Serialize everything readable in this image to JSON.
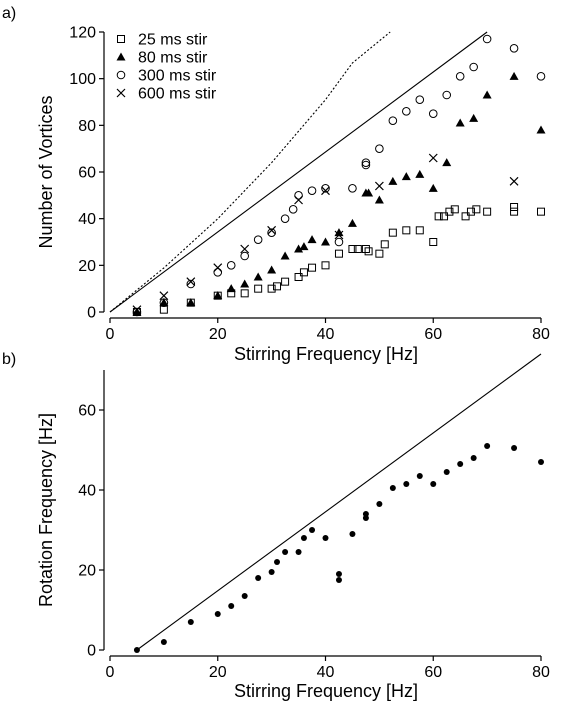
{
  "chart_data": [
    {
      "panel_label": "a)",
      "type": "scatter",
      "xlabel": "Stirring Frequency [Hz]",
      "ylabel": "Number of Vortices",
      "xlim": [
        0,
        80
      ],
      "ylim": [
        0,
        120
      ],
      "xticks": [
        0,
        20,
        40,
        60,
        80
      ],
      "yticks": [
        0,
        20,
        40,
        60,
        80,
        100,
        120
      ],
      "legend_position": "top-left",
      "series": [
        {
          "name": "25 ms stir",
          "marker": "open-square",
          "points": [
            [
              5,
              0
            ],
            [
              10,
              1
            ],
            [
              15,
              4
            ],
            [
              20,
              7
            ],
            [
              22.5,
              8
            ],
            [
              25,
              8
            ],
            [
              27.5,
              10
            ],
            [
              30,
              10
            ],
            [
              31,
              11
            ],
            [
              32.5,
              13
            ],
            [
              35,
              15
            ],
            [
              36,
              17
            ],
            [
              37.5,
              19
            ],
            [
              40,
              20
            ],
            [
              42.5,
              25
            ],
            [
              45,
              27
            ],
            [
              46,
              27
            ],
            [
              47.5,
              27
            ],
            [
              48,
              26
            ],
            [
              50,
              25
            ],
            [
              51,
              29
            ],
            [
              52.5,
              34
            ],
            [
              55,
              35
            ],
            [
              57.5,
              35
            ],
            [
              60,
              30
            ],
            [
              61,
              41
            ],
            [
              62,
              41
            ],
            [
              63,
              43
            ],
            [
              64,
              44
            ],
            [
              66,
              41
            ],
            [
              67,
              43
            ],
            [
              68,
              44
            ],
            [
              70,
              43
            ],
            [
              75,
              43
            ],
            [
              75,
              45
            ],
            [
              80,
              43
            ]
          ]
        },
        {
          "name": "80 ms stir",
          "marker": "filled-triangle",
          "points": [
            [
              5,
              0
            ],
            [
              10,
              4
            ],
            [
              15,
              4
            ],
            [
              20,
              7
            ],
            [
              22.5,
              10
            ],
            [
              25,
              12
            ],
            [
              27.5,
              15
            ],
            [
              30,
              18
            ],
            [
              32.5,
              24
            ],
            [
              35,
              27
            ],
            [
              36,
              28
            ],
            [
              37.5,
              31
            ],
            [
              40,
              30
            ],
            [
              42.5,
              34
            ],
            [
              45,
              38
            ],
            [
              47.5,
              51
            ],
            [
              48,
              51
            ],
            [
              50,
              48
            ],
            [
              52.5,
              56
            ],
            [
              55,
              58
            ],
            [
              57.5,
              59
            ],
            [
              60,
              53
            ],
            [
              62.5,
              64
            ],
            [
              65,
              81
            ],
            [
              67.5,
              83
            ],
            [
              70,
              93
            ],
            [
              75,
              101
            ],
            [
              80,
              78
            ]
          ]
        },
        {
          "name": "300 ms stir",
          "marker": "open-circle",
          "points": [
            [
              5,
              0
            ],
            [
              10,
              4
            ],
            [
              15,
              12
            ],
            [
              20,
              17
            ],
            [
              22.5,
              20
            ],
            [
              25,
              24
            ],
            [
              27.5,
              31
            ],
            [
              30,
              34
            ],
            [
              32.5,
              40
            ],
            [
              34,
              44
            ],
            [
              35,
              50
            ],
            [
              37.5,
              52
            ],
            [
              40,
              53
            ],
            [
              42.5,
              30
            ],
            [
              45,
              53
            ],
            [
              47.5,
              63
            ],
            [
              47.5,
              64
            ],
            [
              50,
              70
            ],
            [
              52.5,
              82
            ],
            [
              55,
              86
            ],
            [
              57.5,
              91
            ],
            [
              60,
              85
            ],
            [
              62.5,
              93
            ],
            [
              65,
              101
            ],
            [
              67.5,
              105
            ],
            [
              70,
              117
            ],
            [
              75,
              113
            ],
            [
              80,
              101
            ]
          ]
        },
        {
          "name": "600 ms stir",
          "marker": "cross",
          "points": [
            [
              5,
              1
            ],
            [
              10,
              7
            ],
            [
              15,
              13
            ],
            [
              20,
              19
            ],
            [
              25,
              27
            ],
            [
              30,
              35
            ],
            [
              35,
              48
            ],
            [
              40,
              52
            ],
            [
              42.5,
              33
            ],
            [
              50,
              54
            ],
            [
              60,
              66
            ],
            [
              75,
              56
            ]
          ]
        }
      ],
      "reference_lines": [
        {
          "style": "solid",
          "points": [
            [
              0,
              0
            ],
            [
              70,
              120
            ]
          ]
        },
        {
          "style": "dotted",
          "points": [
            [
              0,
              0
            ],
            [
              10,
              18.9
            ],
            [
              20,
              40
            ],
            [
              30,
              64
            ],
            [
              40,
              91
            ],
            [
              45,
              106.7
            ],
            [
              52,
              120
            ]
          ]
        }
      ]
    },
    {
      "panel_label": "b)",
      "type": "scatter",
      "xlabel": "Stirring Frequency [Hz]",
      "ylabel": "Rotation Frequency [Hz]",
      "xlim": [
        0,
        80
      ],
      "ylim": [
        0,
        70
      ],
      "xticks": [
        0,
        20,
        40,
        60,
        80
      ],
      "yticks": [
        0,
        20,
        40,
        60
      ],
      "series": [
        {
          "marker": "filled-circle",
          "points": [
            [
              5,
              0
            ],
            [
              10,
              2
            ],
            [
              15,
              7
            ],
            [
              20,
              9
            ],
            [
              22.5,
              11
            ],
            [
              25,
              13.5
            ],
            [
              27.5,
              18
            ],
            [
              30,
              19.5
            ],
            [
              31,
              22
            ],
            [
              32.5,
              24.5
            ],
            [
              35,
              24.5
            ],
            [
              36,
              28
            ],
            [
              37.5,
              30
            ],
            [
              40,
              28
            ],
            [
              42.5,
              19
            ],
            [
              42.5,
              17.5
            ],
            [
              45,
              29
            ],
            [
              47.5,
              33
            ],
            [
              47.5,
              34
            ],
            [
              50,
              36.5
            ],
            [
              52.5,
              40.5
            ],
            [
              55,
              41.5
            ],
            [
              57.5,
              43.5
            ],
            [
              60,
              41.5
            ],
            [
              62.5,
              44.5
            ],
            [
              65,
              46.5
            ],
            [
              67.5,
              48
            ],
            [
              70,
              51
            ],
            [
              75,
              50.5
            ],
            [
              80,
              47
            ]
          ]
        }
      ],
      "reference_lines": [
        {
          "style": "solid",
          "points": [
            [
              5,
              0
            ],
            [
              80,
              74
            ]
          ]
        }
      ]
    }
  ]
}
